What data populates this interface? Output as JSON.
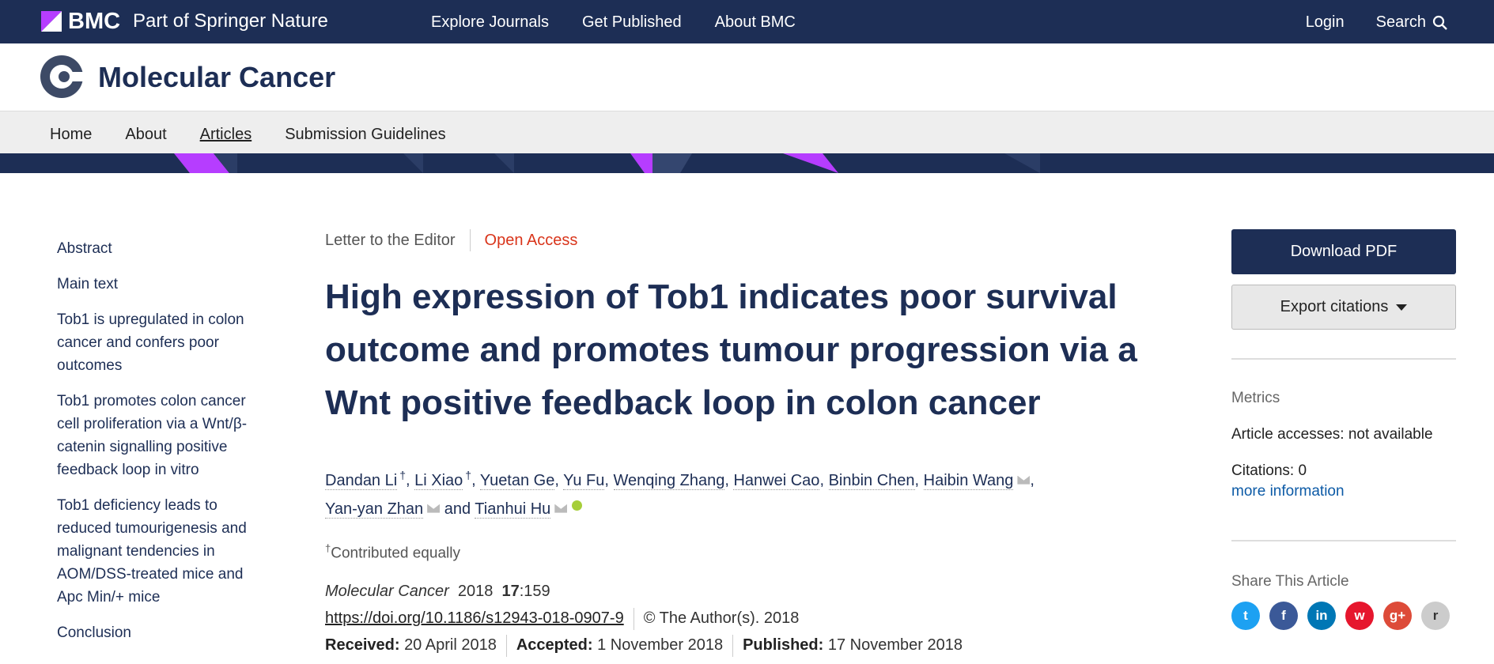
{
  "topbar": {
    "brand": "BMC",
    "brand_sub": "Part of Springer Nature",
    "nav": [
      "Explore Journals",
      "Get Published",
      "About BMC"
    ],
    "login": "Login",
    "search": "Search"
  },
  "journal": {
    "title": "Molecular Cancer"
  },
  "subnav": [
    "Home",
    "About",
    "Articles",
    "Submission Guidelines"
  ],
  "toc": [
    "Abstract",
    "Main text",
    "Tob1 is upregulated in colon cancer and confers poor outcomes",
    "Tob1 promotes colon cancer cell proliferation via a Wnt/β-catenin signalling positive feedback loop in vitro",
    "Tob1 deficiency leads to reduced tumourigenesis and malignant tendencies in AOM/DSS-treated mice and Apc Min/+ mice",
    "Conclusion"
  ],
  "article": {
    "type": "Letter to the Editor",
    "access": "Open Access",
    "title": "High expression of Tob1 indicates poor survival outcome and promotes tumour progression via a Wnt positive feedback loop in colon cancer",
    "authors": [
      "Dandan Li",
      "Li Xiao",
      "Yuetan Ge",
      "Yu Fu",
      "Wenqing Zhang",
      "Hanwei Cao",
      "Binbin Chen",
      "Haibin Wang",
      "Yan-yan Zhan",
      "Tianhui Hu"
    ],
    "dagger": "†",
    "and": "and",
    "contrib_note": "Contributed equally",
    "journal_name": "Molecular Cancer",
    "year": "2018",
    "volume": "17",
    "article_no": ":159",
    "doi": "https://doi.org/10.1186/s12943-018-0907-9",
    "copyright": "©  The Author(s). 2018",
    "received_label": "Received:",
    "received": "20 April 2018",
    "accepted_label": "Accepted:",
    "accepted": "1 November 2018",
    "published_label": "Published:",
    "published": "17 November 2018"
  },
  "right": {
    "download": "Download PDF",
    "export": "Export citations",
    "metrics_label": "Metrics",
    "accesses": "Article accesses: not available",
    "citations": "Citations: 0",
    "more": "more information",
    "share_label": "Share This Article"
  },
  "colors": {
    "navy": "#1d2e55",
    "accent": "#b63dff",
    "oa": "#d9351b"
  }
}
